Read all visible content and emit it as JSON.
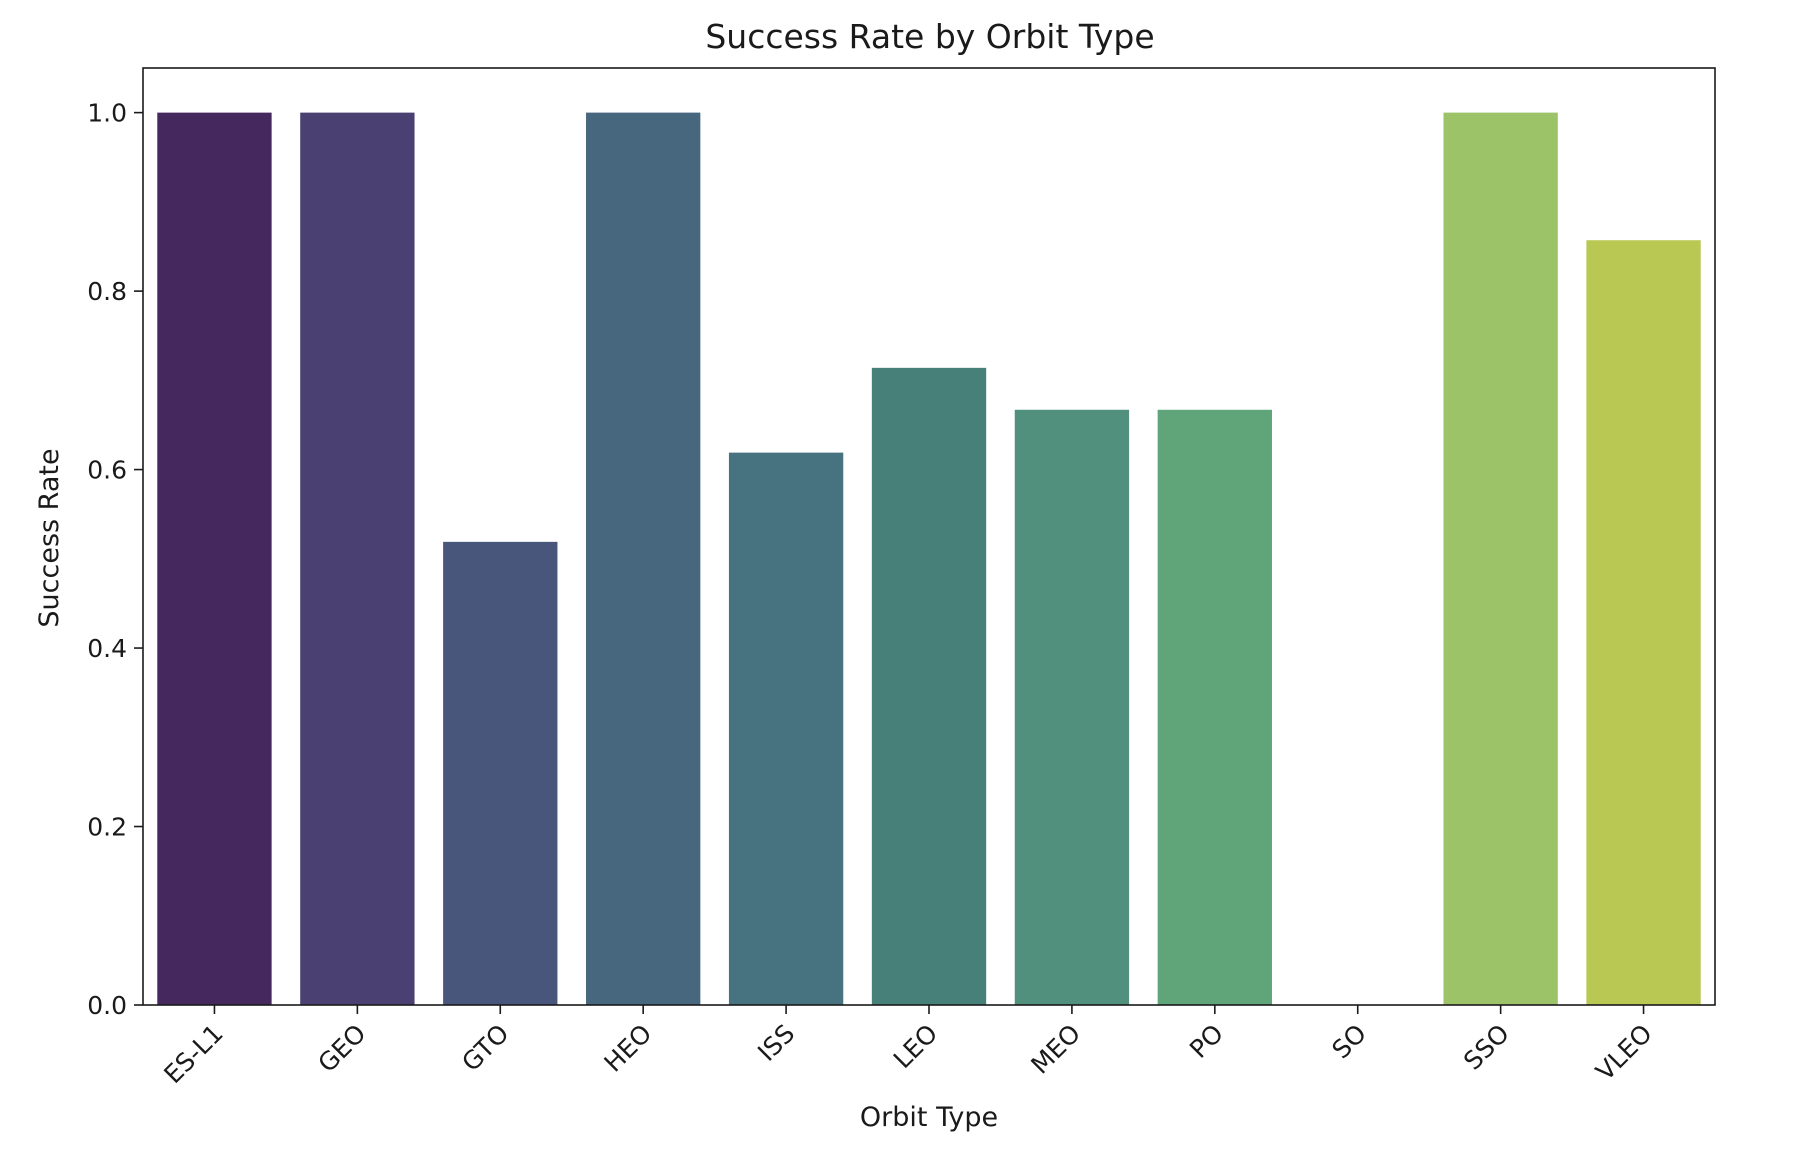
{
  "chart_data": {
    "type": "bar",
    "title": "Success Rate by Orbit Type",
    "xlabel": "Orbit Type",
    "ylabel": "Success Rate",
    "categories": [
      "ES-L1",
      "GEO",
      "GTO",
      "HEO",
      "ISS",
      "LEO",
      "MEO",
      "PO",
      "SO",
      "SSO",
      "VLEO"
    ],
    "values": [
      1.0,
      1.0,
      0.519,
      1.0,
      0.619,
      0.714,
      0.667,
      0.667,
      0.0,
      1.0,
      0.857
    ],
    "colors": [
      "#44285e",
      "#4a4172",
      "#48567c",
      "#46677d",
      "#46737f",
      "#478079",
      "#51907c",
      "#60a47a",
      "#7fb86a",
      "#9cc367",
      "#b8c853"
    ],
    "ylim": [
      0,
      1.05
    ],
    "yticks": [
      0.0,
      0.2,
      0.4,
      0.6,
      0.8,
      1.0
    ],
    "ytick_labels": [
      "0.0",
      "0.2",
      "0.4",
      "0.6",
      "0.8",
      "1.0"
    ],
    "grid": false,
    "legend": "none"
  }
}
